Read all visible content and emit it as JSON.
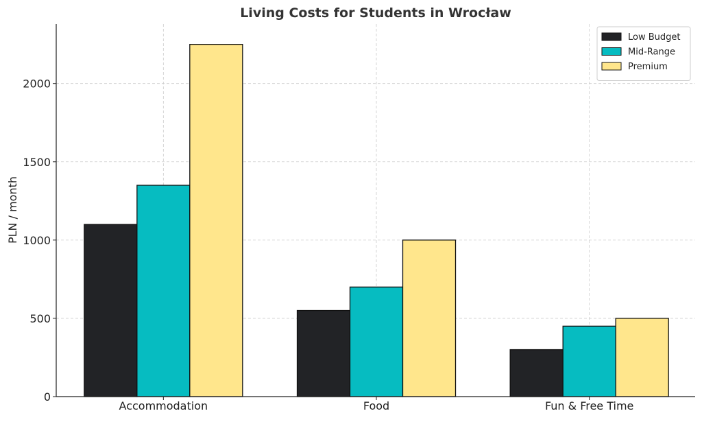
{
  "chart_data": {
    "type": "bar",
    "title": "Living Costs for Students in Wrocław",
    "xlabel": "",
    "ylabel": "PLN / month",
    "categories": [
      "Accommodation",
      "Food",
      "Fun & Free Time"
    ],
    "series": [
      {
        "name": "Low Budget",
        "values": [
          1100,
          550,
          300
        ],
        "color": "#222326"
      },
      {
        "name": "Mid-Range",
        "values": [
          1350,
          700,
          450
        ],
        "color": "#06BCC1"
      },
      {
        "name": "Premium",
        "values": [
          2250,
          1000,
          500
        ],
        "color": "#FFE68C"
      }
    ],
    "ylim": [
      0,
      2380
    ],
    "yticks": [
      0,
      500,
      1000,
      1500,
      2000
    ],
    "grid": true,
    "legend_position": "top-right"
  }
}
